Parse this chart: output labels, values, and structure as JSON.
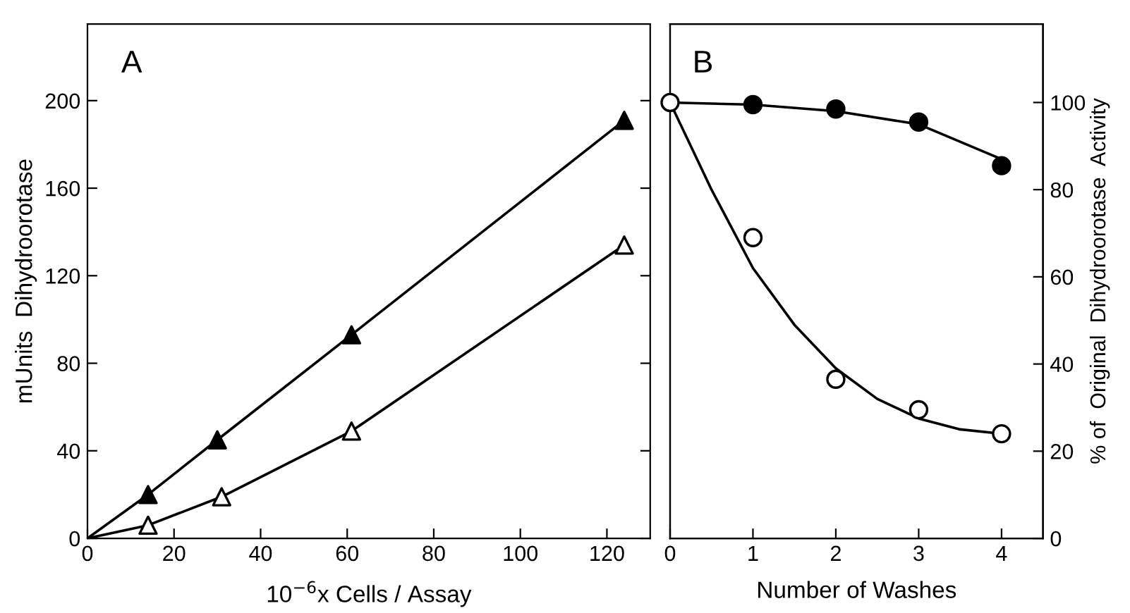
{
  "chart_data": [
    {
      "type": "scatter",
      "xlabel": "10$^{−6}$x Cells / Assay",
      "ylabel": "mUnits  Dihydroorotase",
      "annotations": [
        "A"
      ],
      "xlim": [
        0,
        130
      ],
      "xticks": [
        0,
        20,
        40,
        60,
        80,
        100,
        120
      ],
      "ylim": [
        0,
        235
      ],
      "yticks": [
        0,
        40,
        80,
        120,
        160,
        200
      ],
      "grid": false,
      "legend": false,
      "marker": "triangle",
      "series": [
        {
          "type": "line",
          "color": "#000000",
          "marker": "none",
          "line_style": "solid",
          "x": [
            0,
            14,
            30,
            61,
            124
          ],
          "values": [
            0,
            20,
            45,
            93,
            191
          ]
        },
        {
          "type": "line",
          "color": "#000000",
          "marker": "none",
          "line_style": "solid",
          "x": [
            0,
            14,
            31,
            61,
            124
          ],
          "values": [
            0,
            6,
            19,
            49,
            134
          ]
        },
        {
          "color": "#000000",
          "x": [
            14,
            30,
            61,
            124
          ],
          "values": [
            20,
            45,
            93,
            191
          ]
        },
        {
          "color": "#ffffff",
          "x": [
            14,
            31,
            61,
            124
          ],
          "values": [
            6,
            19,
            49,
            134
          ]
        }
      ]
    },
    {
      "type": "scatter",
      "xlabel": "Number of Washes",
      "y2label": "% of  Original  Dihydroorotase  Activity",
      "annotations": [
        "B"
      ],
      "xlim": [
        0,
        4.5
      ],
      "xticks": [
        0,
        1,
        2,
        3,
        4
      ],
      "y2lim": [
        0,
        118
      ],
      "y2ticks": [
        0,
        20,
        40,
        60,
        80,
        100
      ],
      "grid": false,
      "legend": false,
      "marker": "circle",
      "series": [
        {
          "type": "line",
          "axis": "y2",
          "color": "#000000",
          "marker": "none",
          "line_style": "solid",
          "x": [
            0,
            1,
            2,
            3,
            4
          ],
          "values": [
            100,
            99.5,
            98,
            95,
            87
          ]
        },
        {
          "type": "line",
          "axis": "y2",
          "color": "#000000",
          "marker": "none",
          "line_style": "solid",
          "x": [
            0,
            0.5,
            1,
            1.5,
            2,
            2.5,
            3,
            3.5,
            4
          ],
          "values": [
            100,
            80,
            62,
            49,
            39,
            32,
            27.5,
            25,
            24
          ]
        },
        {
          "axis": "y2",
          "color": "#000000",
          "x": [
            1,
            2,
            3,
            4
          ],
          "values": [
            99.5,
            98.5,
            95.5,
            85.5
          ]
        },
        {
          "axis": "y2",
          "color": "#ffffff",
          "x": [
            0,
            1,
            2,
            3,
            4
          ],
          "values": [
            100,
            69,
            36.5,
            29.5,
            24
          ]
        }
      ]
    }
  ]
}
